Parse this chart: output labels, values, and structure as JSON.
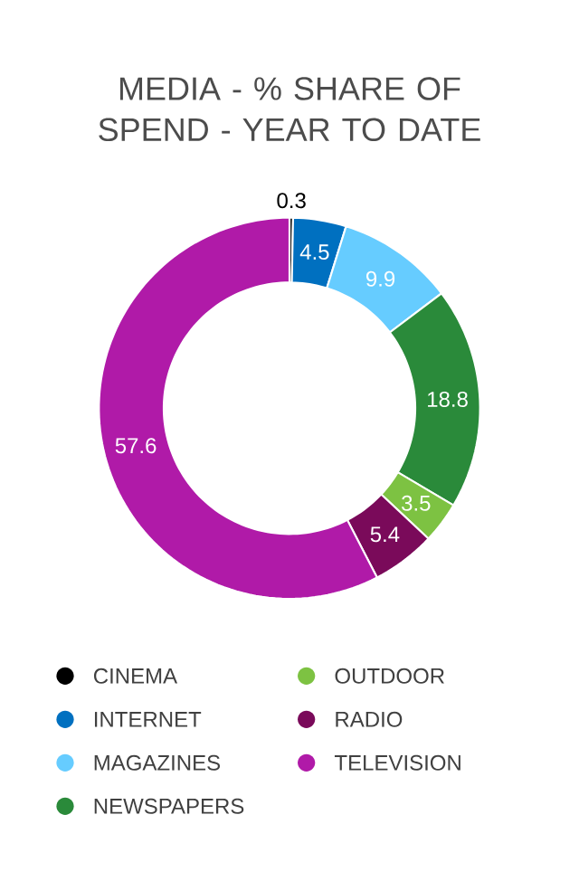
{
  "chart_data": {
    "type": "donut",
    "title": "MEDIA - % SHARE OF SPEND -  YEAR TO DATE",
    "categories": [
      "CINEMA",
      "INTERNET",
      "MAGAZINES",
      "NEWSPAPERS",
      "OUTDOOR",
      "RADIO",
      "TELEVISION"
    ],
    "values": [
      0.3,
      4.5,
      9.9,
      18.8,
      3.5,
      5.4,
      57.6
    ],
    "colors": [
      "#000000",
      "#0070c0",
      "#66ccff",
      "#2a8a3a",
      "#7dc242",
      "#7a0a5a",
      "#b01aa8"
    ],
    "data_labels": true,
    "legend": "bottom"
  }
}
